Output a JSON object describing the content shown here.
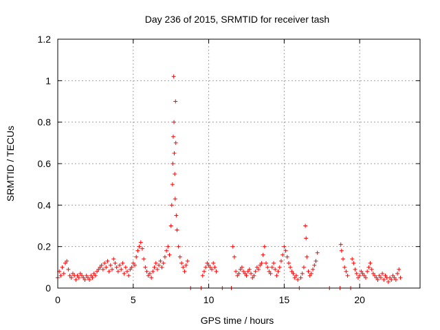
{
  "chart_data": {
    "type": "scatter",
    "title": "Day 236 of 2015, SRMTID for receiver tash",
    "xlabel": "GPS time / hours",
    "ylabel": "SRMTID / TECUs",
    "xlim": [
      0,
      24
    ],
    "ylim": [
      0,
      1.2
    ],
    "xticks": [
      0,
      5,
      10,
      15,
      20
    ],
    "xtick_labels": [
      "0",
      "5",
      "10",
      "15",
      "20"
    ],
    "yticks": [
      0,
      0.2,
      0.4,
      0.6,
      0.8,
      1,
      1.2
    ],
    "ytick_labels": [
      "0",
      "0.2",
      "0.4",
      "0.6",
      "0.8",
      "1",
      "1.2"
    ],
    "grid": true,
    "marker": "+",
    "color": "#ff0000",
    "series": [
      {
        "name": "SRMTID",
        "points": [
          [
            0.0,
            0.05
          ],
          [
            0.1,
            0.08
          ],
          [
            0.2,
            0.06
          ],
          [
            0.3,
            0.1
          ],
          [
            0.4,
            0.07
          ],
          [
            0.5,
            0.12
          ],
          [
            0.6,
            0.13
          ],
          [
            0.7,
            0.09
          ],
          [
            0.8,
            0.06
          ],
          [
            0.9,
            0.05
          ],
          [
            1.0,
            0.07
          ],
          [
            1.1,
            0.06
          ],
          [
            1.2,
            0.04
          ],
          [
            1.3,
            0.06
          ],
          [
            1.4,
            0.05
          ],
          [
            1.5,
            0.07
          ],
          [
            1.6,
            0.06
          ],
          [
            1.7,
            0.05
          ],
          [
            1.8,
            0.04
          ],
          [
            1.9,
            0.06
          ],
          [
            2.0,
            0.05
          ],
          [
            2.1,
            0.04
          ],
          [
            2.2,
            0.06
          ],
          [
            2.3,
            0.05
          ],
          [
            2.4,
            0.07
          ],
          [
            2.5,
            0.06
          ],
          [
            2.6,
            0.08
          ],
          [
            2.7,
            0.09
          ],
          [
            2.8,
            0.1
          ],
          [
            2.9,
            0.11
          ],
          [
            3.0,
            0.09
          ],
          [
            3.1,
            0.12
          ],
          [
            3.2,
            0.1
          ],
          [
            3.3,
            0.13
          ],
          [
            3.4,
            0.08
          ],
          [
            3.5,
            0.11
          ],
          [
            3.6,
            0.09
          ],
          [
            3.7,
            0.14
          ],
          [
            3.8,
            0.12
          ],
          [
            3.9,
            0.1
          ],
          [
            4.0,
            0.08
          ],
          [
            4.1,
            0.11
          ],
          [
            4.2,
            0.09
          ],
          [
            4.3,
            0.12
          ],
          [
            4.4,
            0.07
          ],
          [
            4.5,
            0.1
          ],
          [
            4.6,
            0.08
          ],
          [
            4.7,
            0.06
          ],
          [
            4.8,
            0.09
          ],
          [
            4.9,
            0.1
          ],
          [
            5.0,
            0.12
          ],
          [
            5.1,
            0.11
          ],
          [
            5.2,
            0.15
          ],
          [
            5.3,
            0.18
          ],
          [
            5.4,
            0.2
          ],
          [
            5.5,
            0.22
          ],
          [
            5.6,
            0.19
          ],
          [
            5.7,
            0.14
          ],
          [
            5.8,
            0.1
          ],
          [
            5.9,
            0.08
          ],
          [
            6.0,
            0.06
          ],
          [
            6.1,
            0.07
          ],
          [
            6.2,
            0.05
          ],
          [
            6.3,
            0.08
          ],
          [
            6.4,
            0.1
          ],
          [
            6.5,
            0.12
          ],
          [
            6.6,
            0.09
          ],
          [
            6.7,
            0.11
          ],
          [
            6.8,
            0.13
          ],
          [
            6.9,
            0.1
          ],
          [
            7.0,
            0.12
          ],
          [
            7.1,
            0.15
          ],
          [
            7.2,
            0.18
          ],
          [
            7.3,
            0.2
          ],
          [
            7.4,
            0.16
          ],
          [
            7.5,
            0.3
          ],
          [
            7.55,
            0.4
          ],
          [
            7.6,
            0.5
          ],
          [
            7.62,
            0.6
          ],
          [
            7.65,
            0.73
          ],
          [
            7.68,
            1.02
          ],
          [
            7.7,
            0.8
          ],
          [
            7.72,
            0.65
          ],
          [
            7.75,
            0.55
          ],
          [
            7.78,
            0.43
          ],
          [
            7.8,
            0.9
          ],
          [
            7.82,
            0.7
          ],
          [
            7.85,
            0.35
          ],
          [
            7.9,
            0.28
          ],
          [
            8.0,
            0.2
          ],
          [
            8.1,
            0.15
          ],
          [
            8.2,
            0.12
          ],
          [
            8.3,
            0.1
          ],
          [
            8.4,
            0.08
          ],
          [
            8.5,
            0.11
          ],
          [
            8.6,
            0.13
          ],
          [
            8.8,
            0.0
          ],
          [
            9.5,
            0.0
          ],
          [
            9.6,
            0.06
          ],
          [
            9.7,
            0.08
          ],
          [
            9.8,
            0.1
          ],
          [
            9.9,
            0.12
          ],
          [
            10.0,
            0.11
          ],
          [
            10.1,
            0.1
          ],
          [
            10.2,
            0.09
          ],
          [
            10.3,
            0.12
          ],
          [
            10.4,
            0.1
          ],
          [
            10.5,
            0.08
          ],
          [
            10.9,
            0.0
          ],
          [
            11.5,
            0.0
          ],
          [
            11.6,
            0.2
          ],
          [
            11.7,
            0.15
          ],
          [
            11.8,
            0.08
          ],
          [
            11.9,
            0.06
          ],
          [
            12.0,
            0.07
          ],
          [
            12.1,
            0.09
          ],
          [
            12.2,
            0.1
          ],
          [
            12.3,
            0.08
          ],
          [
            12.4,
            0.07
          ],
          [
            12.5,
            0.06
          ],
          [
            12.6,
            0.08
          ],
          [
            12.7,
            0.09
          ],
          [
            12.8,
            0.07
          ],
          [
            12.9,
            0.05
          ],
          [
            13.0,
            0.06
          ],
          [
            13.1,
            0.08
          ],
          [
            13.2,
            0.1
          ],
          [
            13.3,
            0.09
          ],
          [
            13.4,
            0.11
          ],
          [
            13.5,
            0.12
          ],
          [
            13.6,
            0.16
          ],
          [
            13.7,
            0.2
          ],
          [
            13.8,
            0.12
          ],
          [
            13.9,
            0.1
          ],
          [
            14.0,
            0.08
          ],
          [
            14.1,
            0.07
          ],
          [
            14.2,
            0.1
          ],
          [
            14.3,
            0.12
          ],
          [
            14.4,
            0.09
          ],
          [
            14.5,
            0.06
          ],
          [
            14.6,
            0.08
          ],
          [
            14.7,
            0.1
          ],
          [
            14.8,
            0.13
          ],
          [
            14.9,
            0.16
          ],
          [
            15.0,
            0.2
          ],
          [
            15.1,
            0.18
          ],
          [
            15.2,
            0.15
          ],
          [
            15.3,
            0.12
          ],
          [
            15.4,
            0.1
          ],
          [
            15.5,
            0.08
          ],
          [
            15.6,
            0.07
          ],
          [
            15.7,
            0.05
          ],
          [
            15.8,
            0.06
          ],
          [
            15.9,
            0.04
          ],
          [
            16.0,
            0.0
          ],
          [
            16.1,
            0.05
          ],
          [
            16.2,
            0.07
          ],
          [
            16.3,
            0.1
          ],
          [
            16.4,
            0.3
          ],
          [
            16.45,
            0.24
          ],
          [
            16.5,
            0.15
          ],
          [
            16.6,
            0.08
          ],
          [
            16.7,
            0.06
          ],
          [
            16.8,
            0.07
          ],
          [
            16.9,
            0.09
          ],
          [
            17.0,
            0.11
          ],
          [
            17.1,
            0.13
          ],
          [
            17.2,
            0.17
          ],
          [
            18.0,
            0.0
          ],
          [
            18.7,
            0.0
          ],
          [
            18.75,
            0.21
          ],
          [
            18.8,
            0.18
          ],
          [
            18.9,
            0.14
          ],
          [
            19.0,
            0.1
          ],
          [
            19.1,
            0.08
          ],
          [
            19.2,
            0.06
          ],
          [
            19.4,
            0.0
          ],
          [
            19.5,
            0.14
          ],
          [
            19.6,
            0.12
          ],
          [
            19.7,
            0.09
          ],
          [
            19.8,
            0.07
          ],
          [
            19.9,
            0.05
          ],
          [
            20.0,
            0.06
          ],
          [
            20.1,
            0.08
          ],
          [
            20.2,
            0.07
          ],
          [
            20.3,
            0.06
          ],
          [
            20.4,
            0.05
          ],
          [
            20.5,
            0.08
          ],
          [
            20.6,
            0.1
          ],
          [
            20.7,
            0.12
          ],
          [
            20.8,
            0.09
          ],
          [
            20.9,
            0.07
          ],
          [
            21.0,
            0.06
          ],
          [
            21.1,
            0.05
          ],
          [
            21.2,
            0.04
          ],
          [
            21.3,
            0.06
          ],
          [
            21.4,
            0.05
          ],
          [
            21.5,
            0.07
          ],
          [
            21.6,
            0.04
          ],
          [
            21.7,
            0.06
          ],
          [
            21.8,
            0.05
          ],
          [
            21.9,
            0.03
          ],
          [
            22.0,
            0.05
          ],
          [
            22.1,
            0.04
          ],
          [
            22.2,
            0.06
          ],
          [
            22.3,
            0.05
          ],
          [
            22.4,
            0.04
          ],
          [
            22.5,
            0.07
          ],
          [
            22.6,
            0.09
          ],
          [
            22.7,
            0.05
          ]
        ]
      }
    ]
  }
}
